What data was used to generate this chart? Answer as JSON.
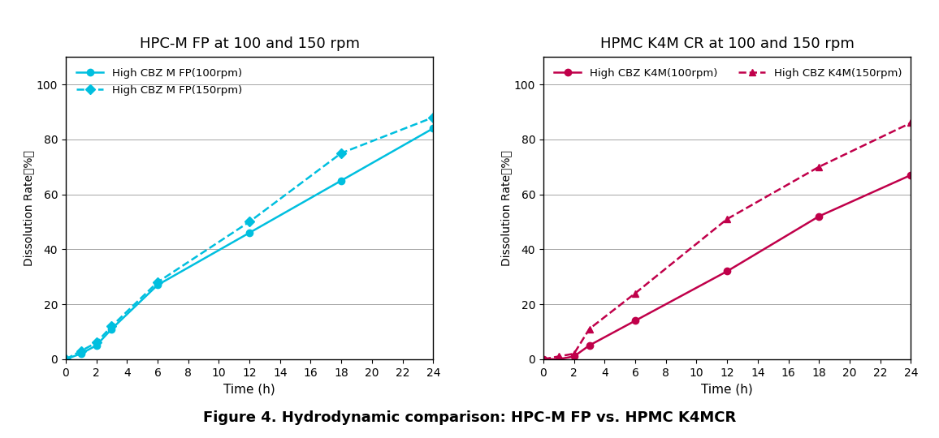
{
  "left_title": "HPC-M FP at 100 and 150 rpm",
  "right_title": "HPMC K4M CR at 100 and 150 rpm",
  "caption": "Figure 4. Hydrodynamic comparison: HPC-M FP vs. HPMC K4MCR",
  "left_x": [
    0,
    1,
    2,
    3,
    6,
    12,
    18,
    24
  ],
  "left_y_100": [
    0,
    2,
    5,
    11,
    27,
    46,
    65,
    84
  ],
  "left_y_150": [
    0,
    3,
    6,
    12,
    28,
    50,
    75,
    88
  ],
  "right_x": [
    0,
    1,
    2,
    3,
    6,
    12,
    18,
    24
  ],
  "right_y_100": [
    0,
    0,
    1,
    5,
    14,
    32,
    52,
    67
  ],
  "right_y_150": [
    0,
    1,
    2,
    11,
    24,
    51,
    70,
    86
  ],
  "left_label_100": "High CBZ M FP(100rpm)",
  "left_label_150": "High CBZ M FP(150rpm)",
  "right_label_100": "High CBZ K4M(100rpm)",
  "right_label_150": "High CBZ K4M(150rpm)",
  "left_color": "#00BFDF",
  "right_color": "#C0004A",
  "xlabel": "Time (h)",
  "ylabel": "Dissolution Rate（%）",
  "ylim": [
    0,
    110
  ],
  "yticks": [
    0,
    20,
    40,
    60,
    80,
    100
  ],
  "xlim": [
    0,
    24
  ],
  "xticks": [
    0,
    2,
    4,
    6,
    8,
    10,
    12,
    14,
    16,
    18,
    20,
    22,
    24
  ],
  "bg_color": "#ffffff",
  "marker_solid": "o",
  "marker_dashed": "D",
  "right_marker_dashed": "^"
}
